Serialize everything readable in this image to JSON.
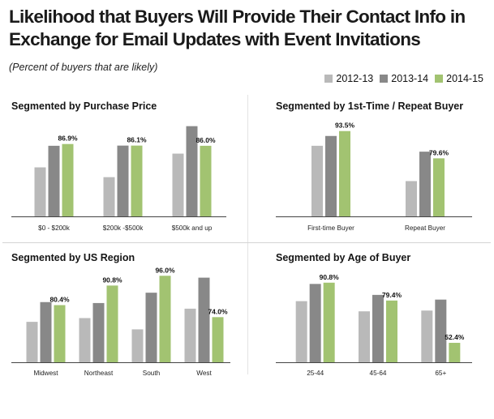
{
  "title_line1": "Likelihood that Buyers Will Provide Their Contact Info in",
  "title_line2": "Exchange for Email Updates with Event Invitations",
  "subtitle": "(Percent of buyers that are likely)",
  "legend": [
    {
      "label": "2012-13",
      "color": "#b9b9b9"
    },
    {
      "label": "2013-14",
      "color": "#888888"
    },
    {
      "label": "2014-15",
      "color": "#a2c371"
    }
  ],
  "chart_data": [
    {
      "type": "bar",
      "title": "Segmented by Purchase Price",
      "categories": [
        "$0 - $200k",
        "$200k -$500k",
        "$500k and up"
      ],
      "series": [
        {
          "name": "2012-13",
          "values": [
            75.0,
            70.0,
            82.0
          ]
        },
        {
          "name": "2013-14",
          "values": [
            86.0,
            86.1,
            96.0
          ]
        },
        {
          "name": "2014-15",
          "values": [
            86.9,
            86.1,
            86.0
          ]
        }
      ],
      "data_labels": [
        "86.9%",
        "86.1%",
        "86.0%"
      ],
      "ylim": [
        50,
        100
      ]
    },
    {
      "type": "bar",
      "title": "Segmented by 1st-Time / Repeat Buyer",
      "categories": [
        "First-time Buyer",
        "Repeat Buyer"
      ],
      "series": [
        {
          "name": "2012-13",
          "values": [
            86.0,
            68.0
          ]
        },
        {
          "name": "2013-14",
          "values": [
            91.0,
            83.0
          ]
        },
        {
          "name": "2014-15",
          "values": [
            93.5,
            79.6
          ]
        }
      ],
      "data_labels": [
        "93.5%",
        "79.6%"
      ],
      "ylim": [
        50,
        100
      ]
    },
    {
      "type": "bar",
      "title": "Segmented by US Region",
      "categories": [
        "Midwest",
        "Northeast",
        "South",
        "West"
      ],
      "series": [
        {
          "name": "2012-13",
          "values": [
            71.5,
            73.5,
            67.5,
            78.5
          ]
        },
        {
          "name": "2013-14",
          "values": [
            82.0,
            81.5,
            87.0,
            95.0
          ]
        },
        {
          "name": "2014-15",
          "values": [
            80.4,
            90.8,
            96.0,
            74.0
          ]
        }
      ],
      "data_labels": [
        "80.4%",
        "90.8%",
        "96.0%",
        "74.0%"
      ],
      "ylim": [
        50,
        100
      ]
    },
    {
      "type": "bar",
      "title": "Segmented by Age of Buyer",
      "categories": [
        "25-44",
        "45-64",
        "65+"
      ],
      "series": [
        {
          "name": "2012-13",
          "values": [
            79.0,
            72.5,
            73.0
          ]
        },
        {
          "name": "2013-14",
          "values": [
            90.0,
            83.0,
            80.0
          ]
        },
        {
          "name": "2014-15",
          "values": [
            90.8,
            79.4,
            52.4
          ]
        }
      ],
      "data_labels": [
        "90.8%",
        "79.4%",
        "52.4%"
      ],
      "ylim": [
        40,
        100
      ]
    }
  ]
}
